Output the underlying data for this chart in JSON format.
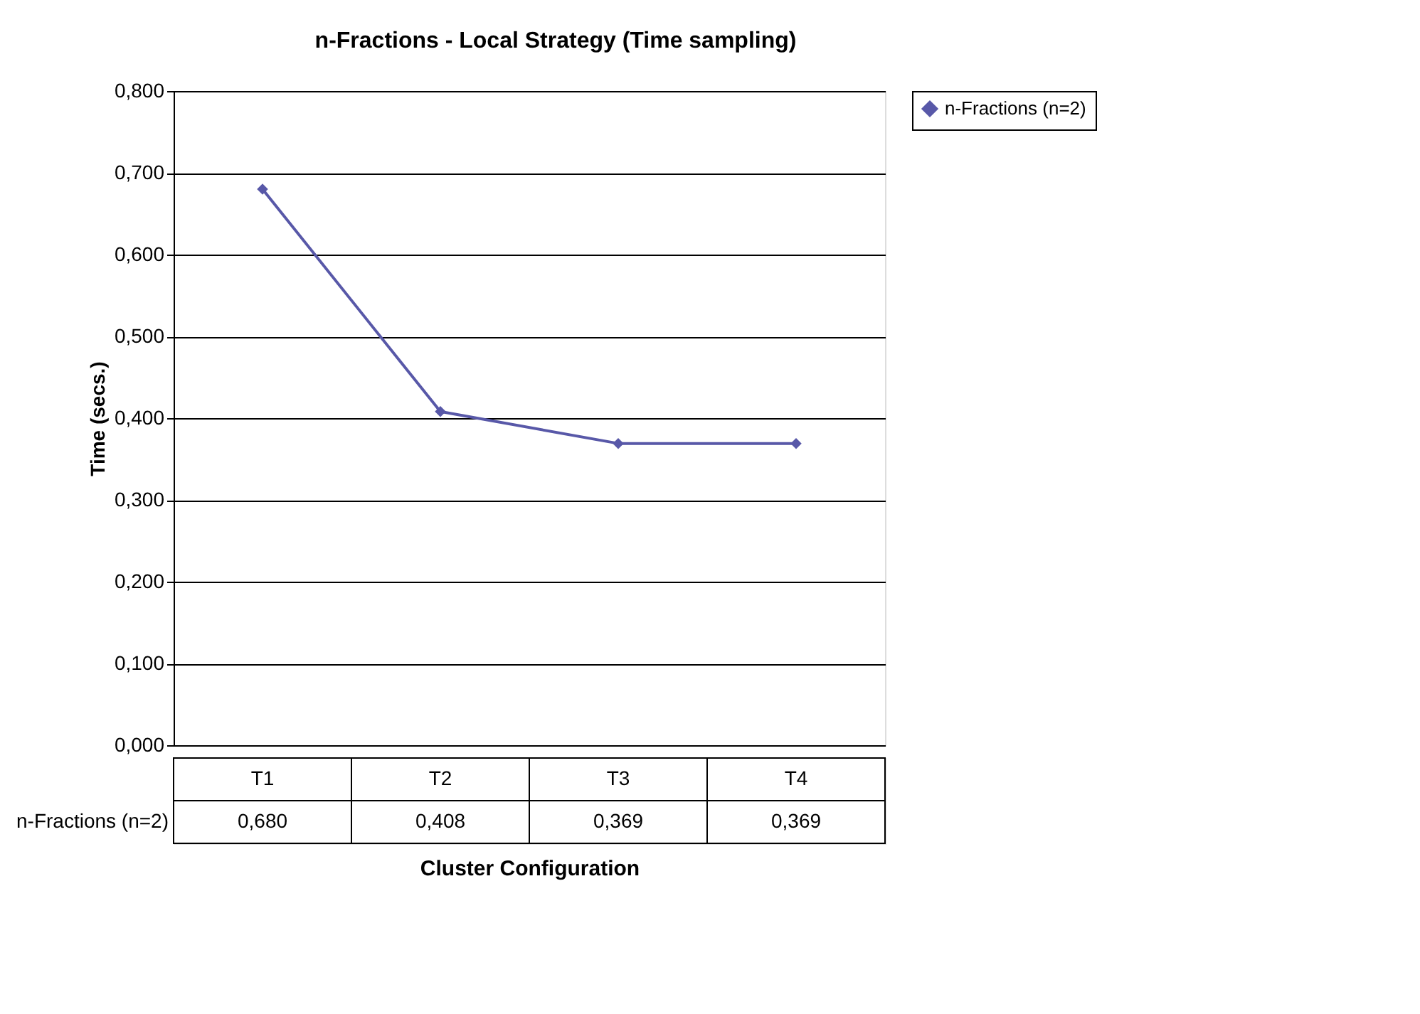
{
  "chart_data": {
    "type": "line",
    "title": "n-Fractions - Local Strategy (Time sampling)",
    "xlabel": "Cluster Configuration",
    "ylabel": "Time (secs.)",
    "categories": [
      "T1",
      "T2",
      "T3",
      "T4"
    ],
    "series": [
      {
        "name": "n-Fractions (n=2)",
        "color": "#5858a8",
        "values": [
          0.68,
          0.408,
          0.369,
          0.369
        ],
        "value_labels": [
          "0,680",
          "0,408",
          "0,369",
          "0,369"
        ]
      }
    ],
    "ylim": [
      0,
      0.8
    ],
    "yticks": [
      {
        "value": 0,
        "label": "0,000"
      },
      {
        "value": 0.1,
        "label": "0,100"
      },
      {
        "value": 0.2,
        "label": "0,200"
      },
      {
        "value": 0.3,
        "label": "0,300"
      },
      {
        "value": 0.4,
        "label": "0,400"
      },
      {
        "value": 0.5,
        "label": "0,500"
      },
      {
        "value": 0.6,
        "label": "0,600"
      },
      {
        "value": 0.7,
        "label": "0,700"
      },
      {
        "value": 0.8,
        "label": "0,800"
      }
    ],
    "grid": "y",
    "legend": "right",
    "marker": "diamond",
    "line_style": "solid"
  }
}
